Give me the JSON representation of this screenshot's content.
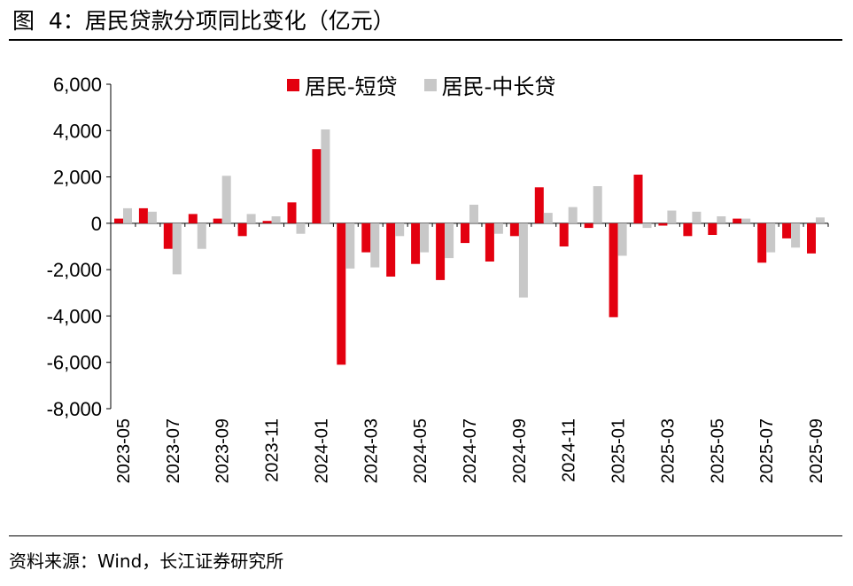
{
  "figure": {
    "title": "图  4：居民贷款分项同比变化（亿元）",
    "source": "资料来源：Wind，长江证券研究所"
  },
  "chart_data": {
    "type": "bar",
    "title": "",
    "xlabel": "",
    "ylabel": "",
    "ylim": [
      -8000,
      6000
    ],
    "yticks": [
      6000,
      4000,
      2000,
      0,
      -2000,
      -4000,
      -6000,
      -8000
    ],
    "ytick_labels": [
      "6,000",
      "4,000",
      "2,000",
      "0",
      "-2,000",
      "-4,000",
      "-6,000",
      "-8,000"
    ],
    "legend_position": "top-center",
    "grid": false,
    "categories": [
      "2023-05",
      "2023-06",
      "2023-07",
      "2023-08",
      "2023-09",
      "2023-10",
      "2023-11",
      "2023-12",
      "2024-01",
      "2024-02",
      "2024-03",
      "2024-04",
      "2024-05",
      "2024-06",
      "2024-07",
      "2024-08",
      "2024-09",
      "2024-10",
      "2024-11",
      "2024-12",
      "2025-01",
      "2025-02",
      "2025-03",
      "2025-04",
      "2025-05",
      "2025-06",
      "2025-07",
      "2025-08",
      "2025-09"
    ],
    "xtick_labels": [
      "2023-05",
      "2023-07",
      "2023-09",
      "2023-11",
      "2024-01",
      "2024-03",
      "2024-05",
      "2024-07",
      "2024-09",
      "2024-11",
      "2025-01",
      "2025-03",
      "2025-05",
      "2025-07",
      "2025-09"
    ],
    "series": [
      {
        "name": "居民-短贷",
        "color": "#e3000f",
        "values": [
          200,
          650,
          -1100,
          400,
          200,
          -550,
          100,
          900,
          3200,
          -6100,
          -1250,
          -2300,
          -1750,
          -2450,
          -850,
          -1650,
          -550,
          1550,
          -1000,
          -200,
          -4050,
          2100,
          -100,
          -550,
          -500,
          200,
          -1700,
          -650,
          -1300
        ]
      },
      {
        "name": "居民-中长贷",
        "color": "#c8c8c8",
        "values": [
          650,
          500,
          -2200,
          -1100,
          2050,
          400,
          300,
          -450,
          4050,
          -1950,
          -1900,
          -550,
          -1250,
          -1500,
          800,
          -450,
          -3200,
          450,
          700,
          1600,
          -1400,
          -200,
          550,
          500,
          300,
          200,
          -1250,
          -1050,
          250
        ]
      }
    ]
  }
}
